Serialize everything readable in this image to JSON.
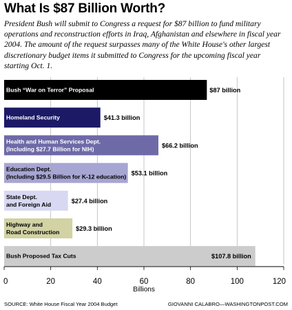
{
  "chart_data": {
    "type": "bar",
    "orientation": "horizontal",
    "title": "What Is $87 Billion Worth?",
    "subtitle": "President Bush will submit to Congress a request for $87 billion to fund military operations and reconstruction efforts in Iraq, Afghanistan and elsewhere in fiscal year 2004. The amount of the request surpasses many of the White House's other largest discretionary budget items it submitted to Congress for the upcoming fiscal year starting Oct. 1.",
    "xlabel": "Billions",
    "ylabel": "",
    "xlim": [
      0,
      120
    ],
    "xticks": [
      0,
      20,
      40,
      60,
      80,
      100,
      120
    ],
    "grid": true,
    "categories": [
      {
        "lines": [
          "Bush “War on Terror” Proposal"
        ],
        "value": 87,
        "value_label": "$87 billion",
        "color": "#000000",
        "label_color": "#ffffff",
        "value_inside": true
      },
      {
        "lines": [
          "Homeland Security"
        ],
        "value": 41.3,
        "value_label": "$41.3  billion",
        "color": "#1c1a66",
        "label_color": "#ffffff",
        "value_inside": false
      },
      {
        "lines": [
          "Health and Human Services Dept.",
          "(Including $27.7 Billion for NIH)"
        ],
        "value": 66.2,
        "value_label": "$66.2  billion",
        "color": "#6e6aa8",
        "label_color": "#ffffff",
        "value_inside": false
      },
      {
        "lines": [
          "Education Dept.",
          "(Including $29.5 Billion for K-12 education)"
        ],
        "value": 53.1,
        "value_label": "$53.1  billion",
        "color": "#a7a5d2",
        "label_color": "#000000",
        "value_inside": false
      },
      {
        "lines": [
          "State Dept.",
          "and Foreign Aid"
        ],
        "value": 27.4,
        "value_label": "$27.4  billion",
        "color": "#d8d8f2",
        "label_color": "#000000",
        "value_inside": false
      },
      {
        "lines": [
          "Highway and",
          "Road Construction"
        ],
        "value": 29.3,
        "value_label": "$29.3  billion",
        "color": "#d2d2a4",
        "label_color": "#000000",
        "value_inside": false
      },
      {
        "lines": [
          "Bush Proposed Tax Cuts"
        ],
        "value": 107.8,
        "value_label": "$107.8  billion",
        "color": "#cccccc",
        "label_color": "#000000",
        "value_inside": true
      }
    ]
  },
  "footer": {
    "source": "SOURCE: White House Fiscal Year 2004 Budget",
    "credit": "GIOVANNI CALABRO—WASHINGTONPOST.COM"
  }
}
